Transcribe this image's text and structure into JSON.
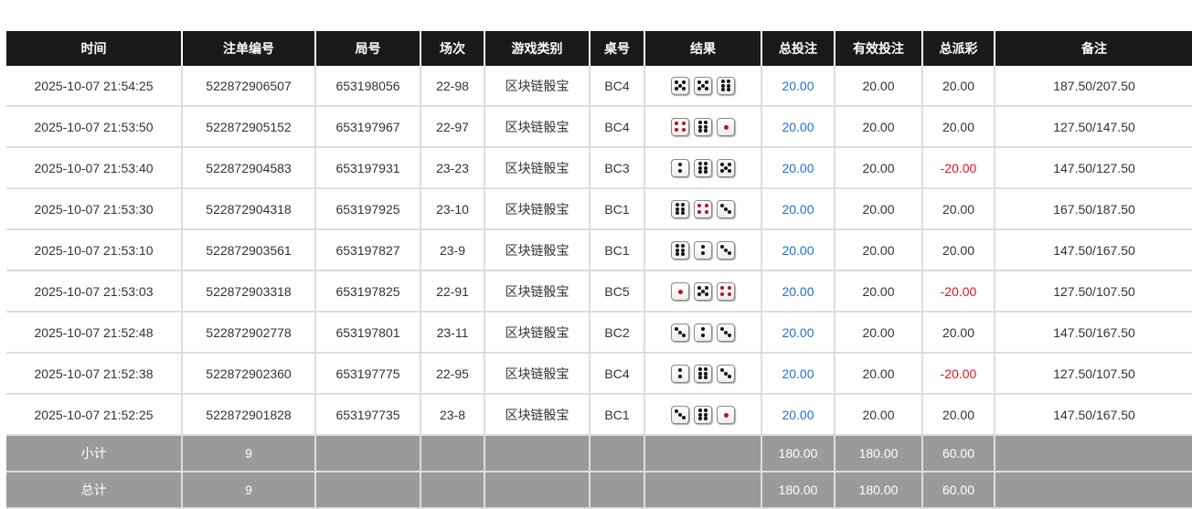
{
  "headers": [
    "时间",
    "注单编号",
    "局号",
    "场次",
    "游戏类别",
    "桌号",
    "结果",
    "总投注",
    "有效投注",
    "总派彩",
    "备注"
  ],
  "rows": [
    {
      "time": "2025-10-07 21:54:25",
      "bet_id": "522872906507",
      "round": "653198056",
      "session": "22-98",
      "game": "区块链骰宝",
      "table": "BC4",
      "dice": [
        5,
        5,
        6
      ],
      "total_bet": "20.00",
      "valid_bet": "20.00",
      "payout": "20.00",
      "payout_negative": false,
      "remark": "187.50/207.50"
    },
    {
      "time": "2025-10-07 21:53:50",
      "bet_id": "522872905152",
      "round": "653197967",
      "session": "22-97",
      "game": "区块链骰宝",
      "table": "BC4",
      "dice": [
        4,
        6,
        1
      ],
      "total_bet": "20.00",
      "valid_bet": "20.00",
      "payout": "20.00",
      "payout_negative": false,
      "remark": "127.50/147.50"
    },
    {
      "time": "2025-10-07 21:53:40",
      "bet_id": "522872904583",
      "round": "653197931",
      "session": "23-23",
      "game": "区块链骰宝",
      "table": "BC3",
      "dice": [
        2,
        6,
        5
      ],
      "total_bet": "20.00",
      "valid_bet": "20.00",
      "payout": "-20.00",
      "payout_negative": true,
      "remark": "147.50/127.50"
    },
    {
      "time": "2025-10-07 21:53:30",
      "bet_id": "522872904318",
      "round": "653197925",
      "session": "23-10",
      "game": "区块链骰宝",
      "table": "BC1",
      "dice": [
        6,
        4,
        3
      ],
      "total_bet": "20.00",
      "valid_bet": "20.00",
      "payout": "20.00",
      "payout_negative": false,
      "remark": "167.50/187.50"
    },
    {
      "time": "2025-10-07 21:53:10",
      "bet_id": "522872903561",
      "round": "653197827",
      "session": "23-9",
      "game": "区块链骰宝",
      "table": "BC1",
      "dice": [
        6,
        2,
        3
      ],
      "total_bet": "20.00",
      "valid_bet": "20.00",
      "payout": "20.00",
      "payout_negative": false,
      "remark": "147.50/167.50"
    },
    {
      "time": "2025-10-07 21:53:03",
      "bet_id": "522872903318",
      "round": "653197825",
      "session": "22-91",
      "game": "区块链骰宝",
      "table": "BC5",
      "dice": [
        1,
        5,
        4
      ],
      "total_bet": "20.00",
      "valid_bet": "20.00",
      "payout": "-20.00",
      "payout_negative": true,
      "remark": "127.50/107.50"
    },
    {
      "time": "2025-10-07 21:52:48",
      "bet_id": "522872902778",
      "round": "653197801",
      "session": "23-11",
      "game": "区块链骰宝",
      "table": "BC2",
      "dice": [
        3,
        2,
        3
      ],
      "total_bet": "20.00",
      "valid_bet": "20.00",
      "payout": "20.00",
      "payout_negative": false,
      "remark": "147.50/167.50"
    },
    {
      "time": "2025-10-07 21:52:38",
      "bet_id": "522872902360",
      "round": "653197775",
      "session": "22-95",
      "game": "区块链骰宝",
      "table": "BC4",
      "dice": [
        2,
        6,
        3
      ],
      "total_bet": "20.00",
      "valid_bet": "20.00",
      "payout": "-20.00",
      "payout_negative": true,
      "remark": "127.50/107.50"
    },
    {
      "time": "2025-10-07 21:52:25",
      "bet_id": "522872901828",
      "round": "653197735",
      "session": "23-8",
      "game": "区块链骰宝",
      "table": "BC1",
      "dice": [
        3,
        6,
        1
      ],
      "total_bet": "20.00",
      "valid_bet": "20.00",
      "payout": "20.00",
      "payout_negative": false,
      "remark": "147.50/167.50"
    }
  ],
  "summary": [
    {
      "label": "小计",
      "count": "9",
      "total_bet": "180.00",
      "valid_bet": "180.00",
      "payout": "60.00"
    },
    {
      "label": "总计",
      "count": "9",
      "total_bet": "180.00",
      "valid_bet": "180.00",
      "payout": "60.00"
    }
  ],
  "colors": {
    "header_bg": "#1a1a1a",
    "bet_blue": "#1e6fd9",
    "negative_red": "#e0141e",
    "summary_bg": "#9a9a9a"
  }
}
